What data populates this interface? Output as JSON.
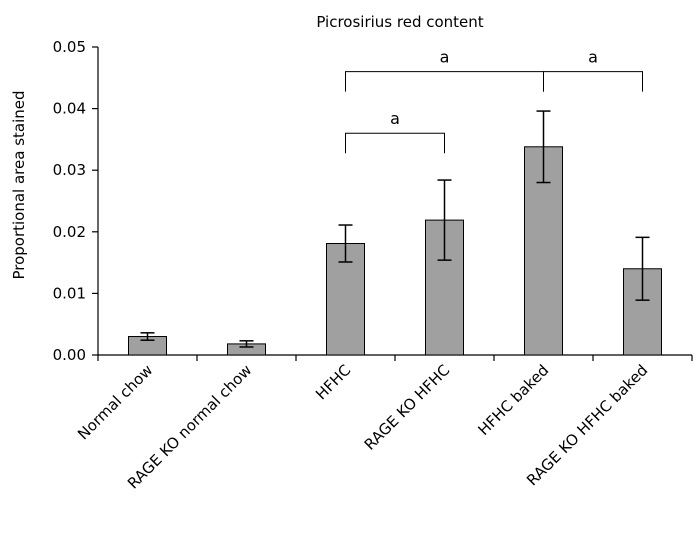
{
  "chart_data": {
    "type": "bar",
    "title": "Picrosirius red content",
    "ylabel": "Proportional area stained",
    "xlabel": "",
    "ylim": [
      0,
      0.05
    ],
    "yticks": [
      "0.00",
      "0.01",
      "0.02",
      "0.03",
      "0.04",
      "0.05"
    ],
    "categories": [
      "Normal chow",
      "RAGE KO normal chow",
      "HFHC",
      "RAGE KO HFHC",
      "HFHC baked",
      "RAGE KO HFHC baked"
    ],
    "values": [
      0.003,
      0.0018,
      0.0181,
      0.0219,
      0.0338,
      0.014
    ],
    "errors": [
      0.0006,
      0.0005,
      0.003,
      0.0065,
      0.0058,
      0.0051
    ],
    "bar_color": "#a0a0a0",
    "significance": [
      {
        "from": 2,
        "to": 3,
        "level": 0.036,
        "label": "a"
      },
      {
        "from": 2,
        "to": 4,
        "level": 0.046,
        "label": "a"
      },
      {
        "from": 4,
        "to": 5,
        "level": 0.046,
        "label": "a"
      }
    ],
    "grid": false,
    "legend": "none"
  }
}
